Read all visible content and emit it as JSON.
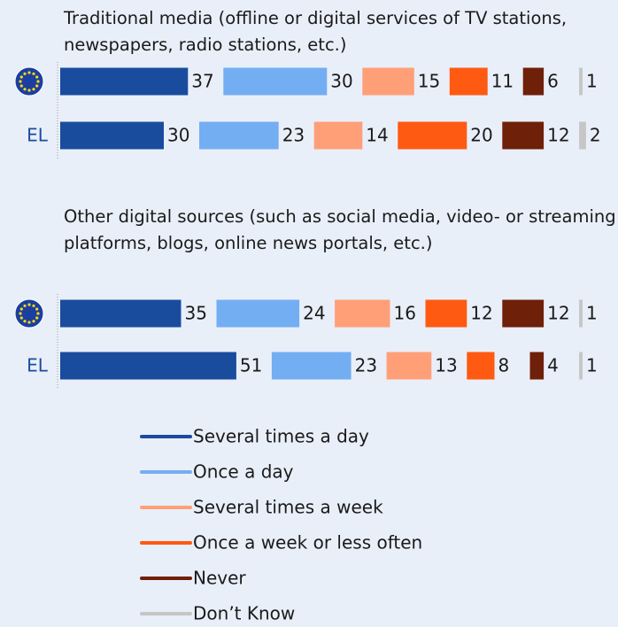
{
  "chart_data": {
    "type": "bar",
    "orientation": "horizontal",
    "stacked": true,
    "series": [
      {
        "name": "Several times a day",
        "color": "#1a4c9e"
      },
      {
        "name": "Once a day",
        "color": "#74aef2"
      },
      {
        "name": "Several times a week",
        "color": "#ff9f78"
      },
      {
        "name": "Once a week or less often",
        "color": "#ff5a12"
      },
      {
        "name": "Never",
        "color": "#6e2008"
      },
      {
        "name": "Don’t Know",
        "color": "#c6c6c6"
      }
    ],
    "panels": [
      {
        "title": "Traditional media (offline or digital services of TV stations, newspapers, radio stations, etc.)",
        "categories": [
          null,
          "EL"
        ],
        "values": [
          [
            37,
            30,
            15,
            11,
            6,
            1
          ],
          [
            30,
            23,
            14,
            20,
            12,
            2
          ]
        ]
      },
      {
        "title": "Other digital sources (such as social media, video- or streaming platforms, blogs, online news portals, etc.)",
        "categories": [
          null,
          "EL"
        ],
        "values": [
          [
            35,
            24,
            16,
            12,
            12,
            1
          ],
          [
            51,
            23,
            13,
            8,
            4,
            1
          ]
        ]
      }
    ]
  }
}
